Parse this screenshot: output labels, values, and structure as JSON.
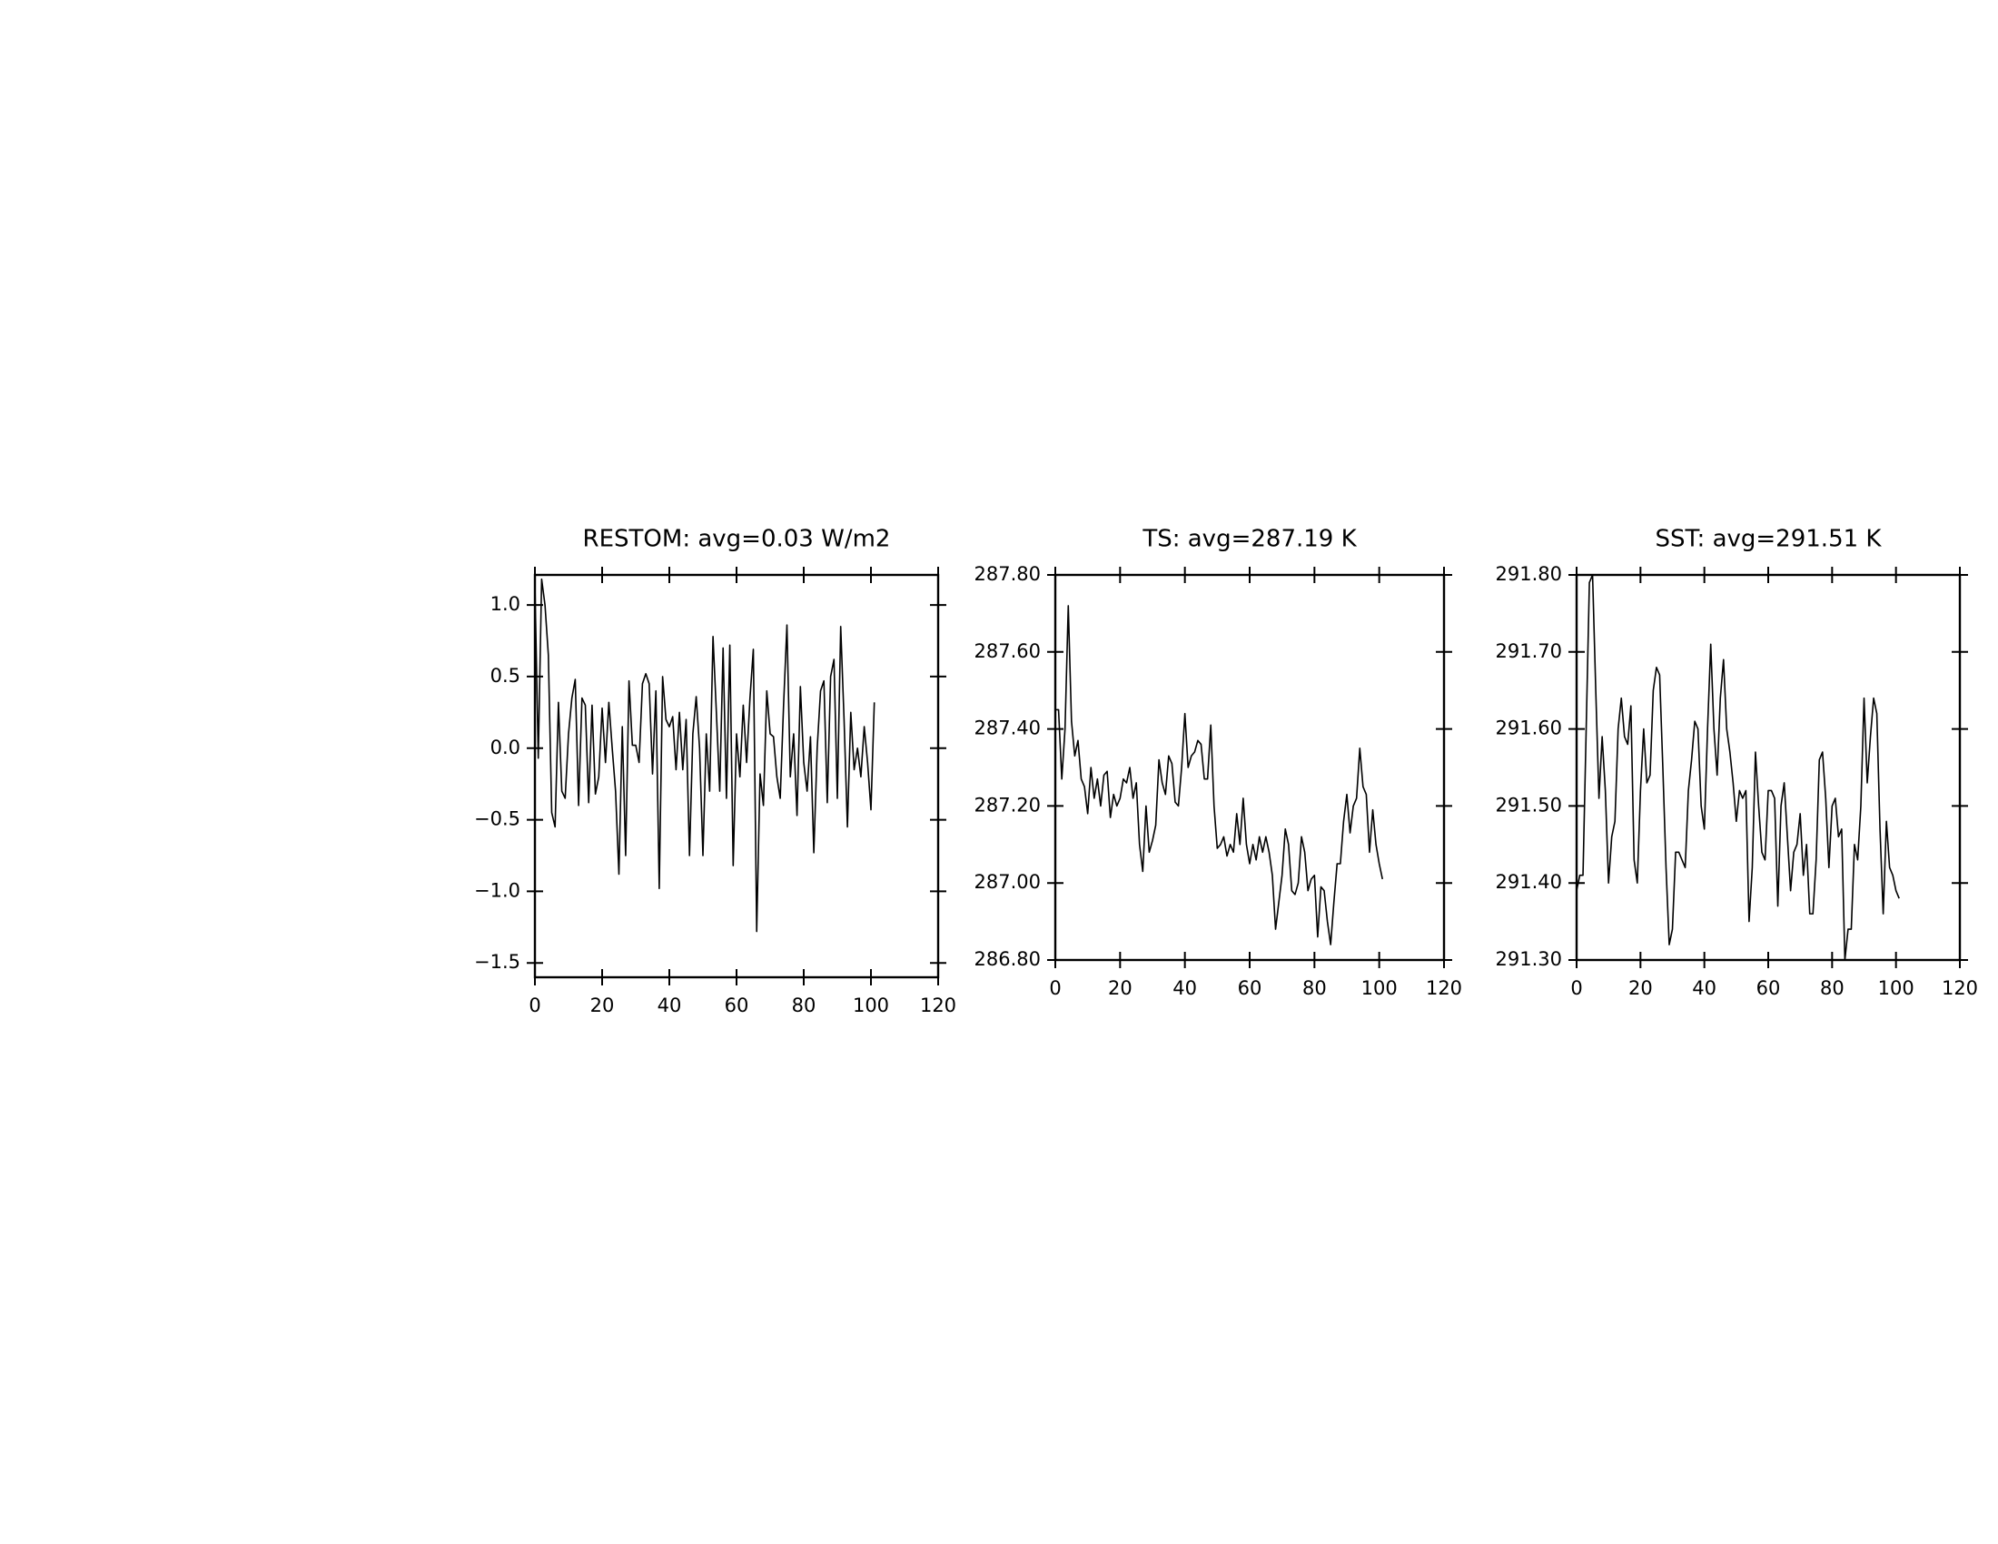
{
  "chart_data": [
    {
      "type": "line",
      "title": "RESTOM: avg=0.03 W/m2",
      "x": [
        0,
        1,
        2,
        3,
        4,
        5,
        6,
        7,
        8,
        9,
        10,
        11,
        12,
        13,
        14,
        15,
        16,
        17,
        18,
        19,
        20,
        21,
        22,
        23,
        24,
        25,
        26,
        27,
        28,
        29,
        30,
        31,
        32,
        33,
        34,
        35,
        36,
        37,
        38,
        39,
        40,
        41,
        42,
        43,
        44,
        45,
        46,
        47,
        48,
        49,
        50,
        51,
        52,
        53,
        54,
        55,
        56,
        57,
        58,
        59,
        60,
        61,
        62,
        63,
        64,
        65,
        66,
        67,
        68,
        69,
        70,
        71,
        72,
        73,
        74,
        75,
        76,
        77,
        78,
        79,
        80,
        81,
        82,
        83,
        84,
        85,
        86,
        87,
        88,
        89,
        90,
        91,
        92,
        93,
        94,
        95,
        96,
        97,
        98,
        99,
        100,
        101
      ],
      "values": [
        1.15,
        -0.07,
        1.18,
        1.0,
        0.65,
        -0.45,
        -0.55,
        0.32,
        -0.3,
        -0.35,
        0.1,
        0.35,
        0.48,
        -0.4,
        0.35,
        0.3,
        -0.38,
        0.3,
        -0.32,
        -0.2,
        0.28,
        -0.1,
        0.32,
        0.0,
        -0.3,
        -0.88,
        0.15,
        -0.75,
        0.47,
        0.02,
        0.02,
        -0.1,
        0.45,
        0.52,
        0.45,
        -0.18,
        0.4,
        -0.98,
        0.5,
        0.2,
        0.15,
        0.22,
        -0.15,
        0.25,
        -0.15,
        0.2,
        -0.75,
        0.1,
        0.36,
        0.0,
        -0.75,
        0.1,
        -0.3,
        0.78,
        0.25,
        -0.3,
        0.7,
        -0.35,
        0.72,
        -0.82,
        0.1,
        -0.2,
        0.3,
        -0.1,
        0.35,
        0.69,
        -1.28,
        -0.18,
        -0.4,
        0.4,
        0.1,
        0.08,
        -0.2,
        -0.35,
        0.3,
        0.86,
        -0.2,
        0.1,
        -0.47,
        0.43,
        -0.1,
        -0.3,
        0.08,
        -0.73,
        0.0,
        0.4,
        0.47,
        -0.38,
        0.5,
        0.62,
        -0.35,
        0.85,
        0.2,
        -0.55,
        0.25,
        -0.15,
        0.0,
        -0.2,
        0.15,
        -0.1,
        -0.43,
        0.32
      ],
      "color": "#000000",
      "xlim": [
        0,
        120
      ],
      "xticks": [
        0,
        20,
        40,
        60,
        80,
        100,
        120
      ],
      "ylim": [
        -1.6,
        1.21
      ],
      "yticks": [
        {
          "value": -1.5,
          "label": "−1.5"
        },
        {
          "value": -1.0,
          "label": "−1.0"
        },
        {
          "value": -0.5,
          "label": "−0.5"
        },
        {
          "value": 0,
          "label": "0.0"
        },
        {
          "value": 0.5,
          "label": "0.5"
        },
        {
          "value": 1.0,
          "label": "1.0"
        }
      ]
    },
    {
      "type": "line",
      "title": "TS: avg=287.19 K",
      "x": [
        0,
        1,
        2,
        3,
        4,
        5,
        6,
        7,
        8,
        9,
        10,
        11,
        12,
        13,
        14,
        15,
        16,
        17,
        18,
        19,
        20,
        21,
        22,
        23,
        24,
        25,
        26,
        27,
        28,
        29,
        30,
        31,
        32,
        33,
        34,
        35,
        36,
        37,
        38,
        39,
        40,
        41,
        42,
        43,
        44,
        45,
        46,
        47,
        48,
        49,
        50,
        51,
        52,
        53,
        54,
        55,
        56,
        57,
        58,
        59,
        60,
        61,
        62,
        63,
        64,
        65,
        66,
        67,
        68,
        69,
        70,
        71,
        72,
        73,
        74,
        75,
        76,
        77,
        78,
        79,
        80,
        81,
        82,
        83,
        84,
        85,
        86,
        87,
        88,
        89,
        90,
        91,
        92,
        93,
        94,
        95,
        96,
        97,
        98,
        99,
        100,
        101
      ],
      "values": [
        287.45,
        287.45,
        287.27,
        287.4,
        287.72,
        287.42,
        287.33,
        287.37,
        287.27,
        287.25,
        287.18,
        287.3,
        287.22,
        287.27,
        287.2,
        287.28,
        287.29,
        287.17,
        287.23,
        287.2,
        287.22,
        287.27,
        287.26,
        287.3,
        287.22,
        287.26,
        287.1,
        287.03,
        287.2,
        287.08,
        287.11,
        287.15,
        287.32,
        287.26,
        287.23,
        287.33,
        287.31,
        287.21,
        287.2,
        287.3,
        287.44,
        287.3,
        287.33,
        287.34,
        287.37,
        287.36,
        287.27,
        287.27,
        287.41,
        287.2,
        287.09,
        287.1,
        287.12,
        287.07,
        287.1,
        287.08,
        287.18,
        287.1,
        287.22,
        287.1,
        287.05,
        287.1,
        287.06,
        287.12,
        287.08,
        287.12,
        287.08,
        287.02,
        286.88,
        286.95,
        287.02,
        287.14,
        287.1,
        286.98,
        286.97,
        287.0,
        287.12,
        287.08,
        286.98,
        287.01,
        287.02,
        286.86,
        286.99,
        286.98,
        286.9,
        286.84,
        286.95,
        287.05,
        287.05,
        287.16,
        287.23,
        287.13,
        287.2,
        287.22,
        287.35,
        287.25,
        287.23,
        287.08,
        287.19,
        287.1,
        287.05,
        287.01
      ],
      "color": "#000000",
      "xlim": [
        0,
        120
      ],
      "xticks": [
        0,
        20,
        40,
        60,
        80,
        100,
        120
      ],
      "ylim": [
        286.8,
        287.8
      ],
      "yticks": [
        {
          "value": 286.8,
          "label": "286.80"
        },
        {
          "value": 287.0,
          "label": "287.00"
        },
        {
          "value": 287.2,
          "label": "287.20"
        },
        {
          "value": 287.4,
          "label": "287.40"
        },
        {
          "value": 287.6,
          "label": "287.60"
        },
        {
          "value": 287.8,
          "label": "287.80"
        }
      ]
    },
    {
      "type": "line",
      "title": "SST: avg=291.51 K",
      "x": [
        0,
        1,
        2,
        3,
        4,
        5,
        6,
        7,
        8,
        9,
        10,
        11,
        12,
        13,
        14,
        15,
        16,
        17,
        18,
        19,
        20,
        21,
        22,
        23,
        24,
        25,
        26,
        27,
        28,
        29,
        30,
        31,
        32,
        33,
        34,
        35,
        36,
        37,
        38,
        39,
        40,
        41,
        42,
        43,
        44,
        45,
        46,
        47,
        48,
        49,
        50,
        51,
        52,
        53,
        54,
        55,
        56,
        57,
        58,
        59,
        60,
        61,
        62,
        63,
        64,
        65,
        66,
        67,
        68,
        69,
        70,
        71,
        72,
        73,
        74,
        75,
        76,
        77,
        78,
        79,
        80,
        81,
        82,
        83,
        84,
        85,
        86,
        87,
        88,
        89,
        90,
        91,
        92,
        93,
        94,
        95,
        96,
        97,
        98,
        99,
        100,
        101
      ],
      "values": [
        291.39,
        291.41,
        291.41,
        291.6,
        291.79,
        291.8,
        291.65,
        291.51,
        291.59,
        291.52,
        291.4,
        291.46,
        291.48,
        291.6,
        291.64,
        291.59,
        291.58,
        291.63,
        291.43,
        291.4,
        291.52,
        291.6,
        291.53,
        291.54,
        291.65,
        291.68,
        291.67,
        291.55,
        291.42,
        291.32,
        291.34,
        291.44,
        291.44,
        291.43,
        291.42,
        291.52,
        291.56,
        291.61,
        291.6,
        291.5,
        291.47,
        291.6,
        291.71,
        291.6,
        291.54,
        291.64,
        291.69,
        291.6,
        291.57,
        291.53,
        291.48,
        291.52,
        291.51,
        291.52,
        291.35,
        291.42,
        291.57,
        291.5,
        291.44,
        291.43,
        291.52,
        291.52,
        291.51,
        291.37,
        291.5,
        291.53,
        291.46,
        291.39,
        291.44,
        291.45,
        291.49,
        291.41,
        291.45,
        291.36,
        291.36,
        291.43,
        291.56,
        291.57,
        291.51,
        291.42,
        291.5,
        291.51,
        291.46,
        291.47,
        291.3,
        291.34,
        291.34,
        291.45,
        291.43,
        291.5,
        291.64,
        291.53,
        291.59,
        291.64,
        291.62,
        291.47,
        291.36,
        291.48,
        291.42,
        291.41,
        291.39,
        291.38
      ],
      "color": "#000000",
      "xlim": [
        0,
        120
      ],
      "xticks": [
        0,
        20,
        40,
        60,
        80,
        100,
        120
      ],
      "ylim": [
        291.3,
        291.8
      ],
      "yticks": [
        {
          "value": 291.3,
          "label": "291.30"
        },
        {
          "value": 291.4,
          "label": "291.40"
        },
        {
          "value": 291.5,
          "label": "291.50"
        },
        {
          "value": 291.6,
          "label": "291.60"
        },
        {
          "value": 291.7,
          "label": "291.70"
        },
        {
          "value": 291.8,
          "label": "291.80"
        }
      ]
    }
  ]
}
